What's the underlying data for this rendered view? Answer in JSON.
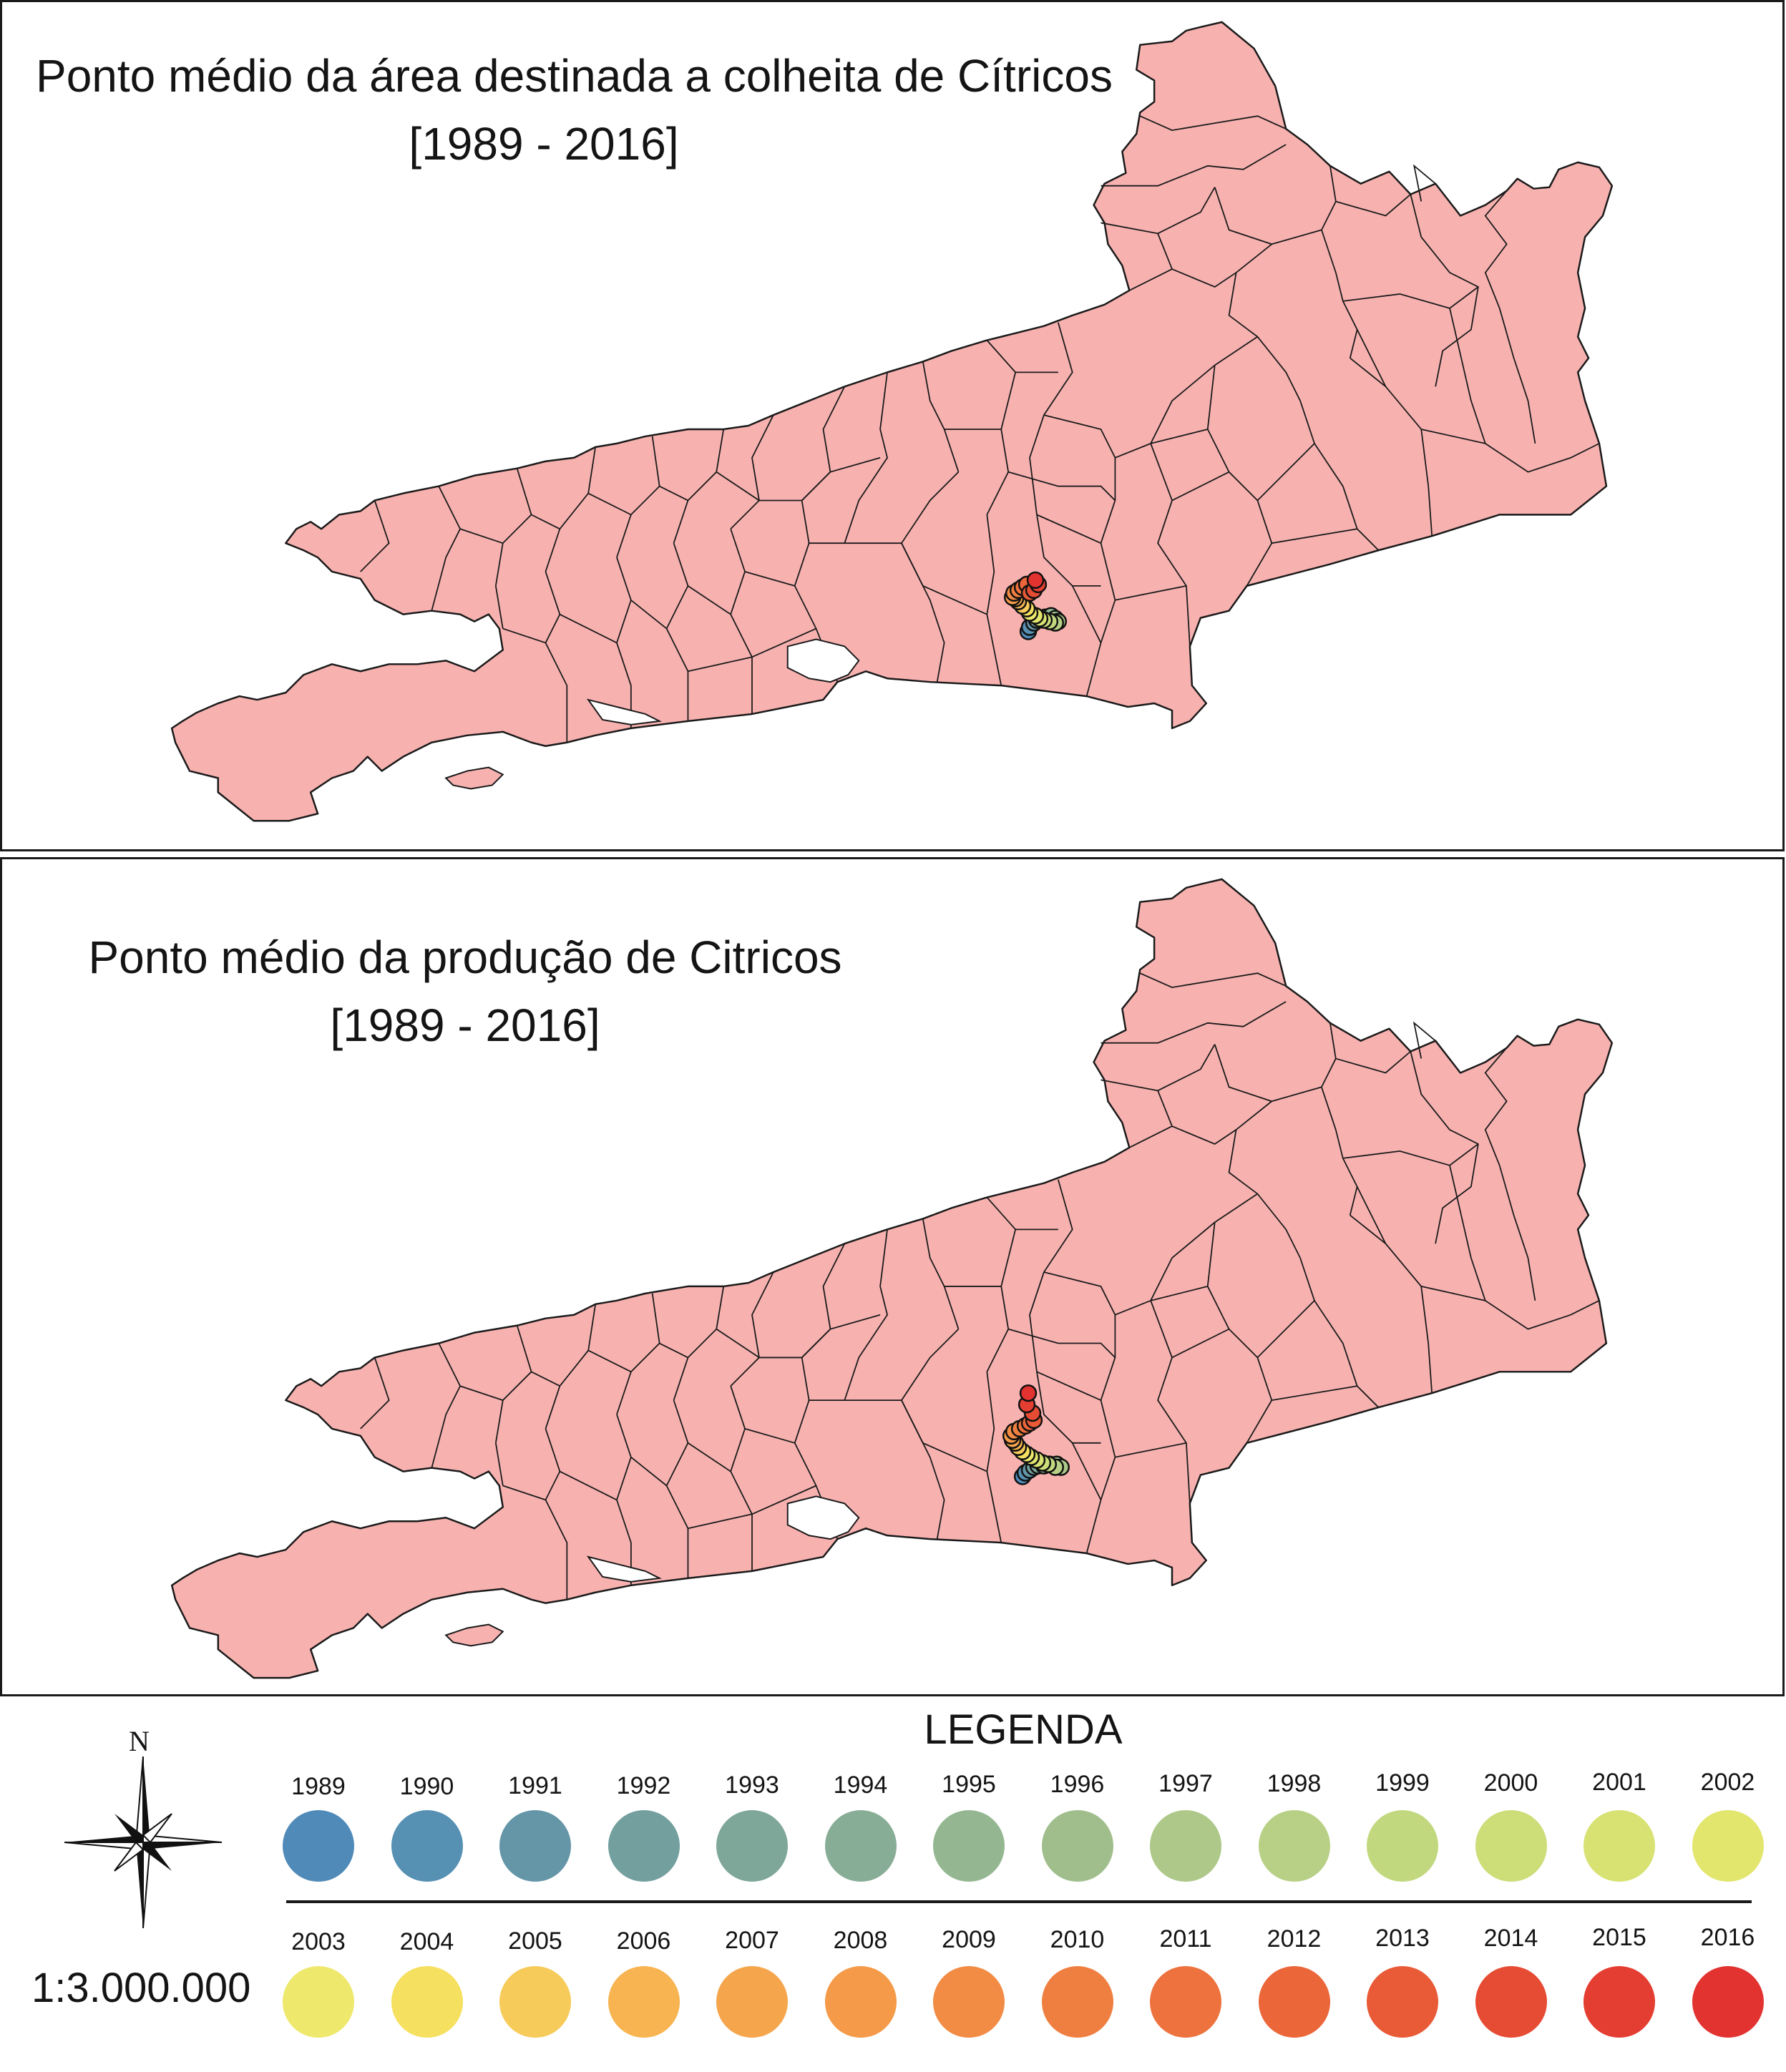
{
  "maps": [
    {
      "title": "Ponto médio da área destinada a colheita de Cítricos",
      "period": "[1989 - 2016]",
      "midpoint_years": [
        "1989",
        "1990",
        "1991",
        "1992",
        "1993",
        "1994",
        "1995",
        "1996",
        "1997",
        "1998",
        "1999",
        "2000",
        "2001",
        "2002",
        "2003",
        "2004",
        "2005",
        "2006",
        "2007",
        "2008",
        "2009",
        "2010",
        "2011",
        "2012",
        "2013",
        "2014",
        "2015",
        "2016"
      ]
    },
    {
      "title": "Ponto médio da produção de Citricos",
      "period": "[1989 - 2016]",
      "midpoint_years": [
        "1989",
        "1990",
        "1991",
        "1992",
        "1993",
        "1994",
        "1995",
        "1996",
        "1997",
        "1998",
        "1999",
        "2000",
        "2001",
        "2002",
        "2003",
        "2004",
        "2005",
        "2006",
        "2007",
        "2008",
        "2009",
        "2010",
        "2011",
        "2012",
        "2013",
        "2014",
        "2015",
        "2016"
      ]
    }
  ],
  "colors": {
    "state_fill": "#f7b2b0",
    "boundary": "#1a1a1a"
  },
  "legend": {
    "title": "LEGENDA",
    "north_label": "N",
    "scale": "1:3.000.000",
    "items": [
      {
        "year": "1989",
        "color": "#4f8ab9"
      },
      {
        "year": "1990",
        "color": "#5690b3"
      },
      {
        "year": "1991",
        "color": "#6496a8"
      },
      {
        "year": "1992",
        "color": "#739f9f"
      },
      {
        "year": "1993",
        "color": "#7ea79a"
      },
      {
        "year": "1994",
        "color": "#88ad97"
      },
      {
        "year": "1995",
        "color": "#94b792"
      },
      {
        "year": "1996",
        "color": "#a0be8c"
      },
      {
        "year": "1997",
        "color": "#adc888"
      },
      {
        "year": "1998",
        "color": "#b8d085"
      },
      {
        "year": "1999",
        "color": "#c2d87e"
      },
      {
        "year": "2000",
        "color": "#cddd78"
      },
      {
        "year": "2001",
        "color": "#d7e273"
      },
      {
        "year": "2002",
        "color": "#e2e66d"
      },
      {
        "year": "2003",
        "color": "#eee86c"
      },
      {
        "year": "2004",
        "color": "#f5e05f"
      },
      {
        "year": "2005",
        "color": "#f7cb5a"
      },
      {
        "year": "2006",
        "color": "#f7b451"
      },
      {
        "year": "2007",
        "color": "#f5a64d"
      },
      {
        "year": "2008",
        "color": "#f49a49"
      },
      {
        "year": "2009",
        "color": "#f28b44"
      },
      {
        "year": "2010",
        "color": "#ef7f40"
      },
      {
        "year": "2011",
        "color": "#ed723d"
      },
      {
        "year": "2012",
        "color": "#eb6639"
      },
      {
        "year": "2013",
        "color": "#e95a36"
      },
      {
        "year": "2014",
        "color": "#e64b33"
      },
      {
        "year": "2015",
        "color": "#e43d31"
      },
      {
        "year": "2016",
        "color": "#e23330"
      }
    ]
  }
}
